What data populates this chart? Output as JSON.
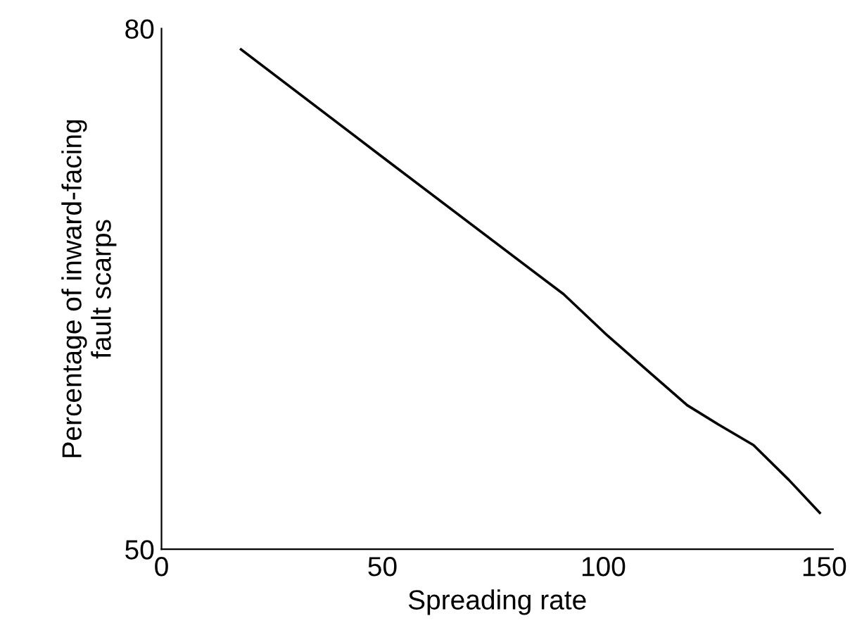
{
  "chart_data": {
    "type": "line",
    "xlabel": "Spreading rate",
    "ylabel": "Percentage of inward-facing\nfault scarps",
    "x": [
      18,
      50,
      91,
      101,
      110,
      119,
      126,
      134,
      142,
      149
    ],
    "values": [
      78.8,
      72.6,
      64.7,
      62.3,
      60.3,
      58.3,
      57.2,
      56.0,
      54.0,
      52.1
    ],
    "color": "#000000",
    "xlim": [
      0,
      152
    ],
    "ylim": [
      50,
      80
    ],
    "xticks": [
      0,
      50,
      100,
      150
    ],
    "yticks": [
      50,
      80
    ],
    "grid": false,
    "legend": false
  }
}
